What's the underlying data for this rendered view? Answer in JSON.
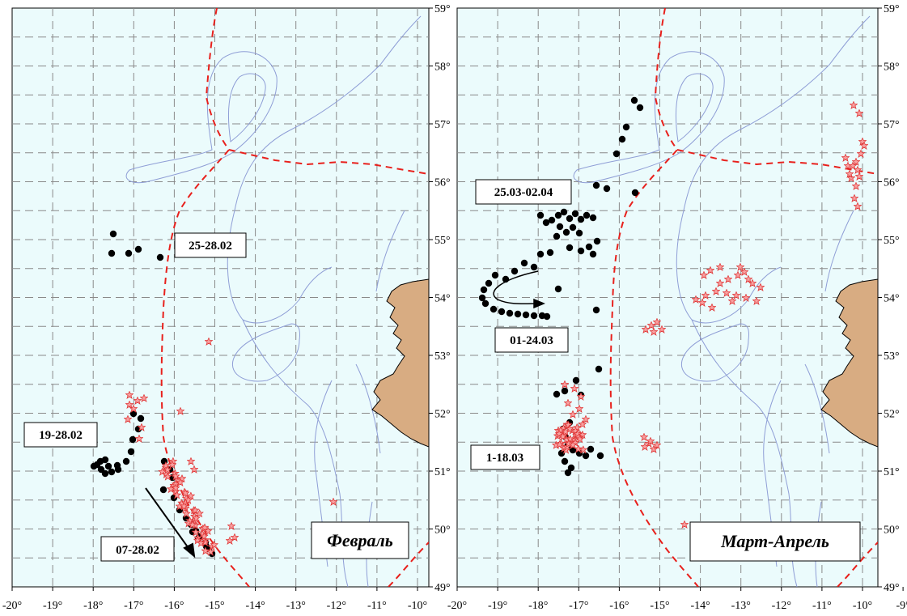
{
  "panels": [
    {
      "id": "feb",
      "title": "Февраль",
      "x_ticks": [
        "-20°",
        "-19°",
        "-18°",
        "-17°",
        "-16°",
        "-15°",
        "-14°",
        "-13°",
        "-12°",
        "-11°",
        "-10°"
      ],
      "y_ticks": [
        "49°",
        "50°",
        "51°",
        "52°",
        "53°",
        "54°",
        "55°",
        "56°",
        "57°",
        "58°",
        "59°"
      ],
      "labels": [
        "25-28.02",
        "19-28.02",
        "07-28.02"
      ]
    },
    {
      "id": "mar",
      "title": "Март-Апрель",
      "x_ticks": [
        "-20°",
        "-19°",
        "-18°",
        "-17°",
        "-16°",
        "-15°",
        "-14°",
        "-13°",
        "-12°",
        "-11°",
        "-10°",
        "-9°"
      ],
      "y_ticks": [
        "49°",
        "50°",
        "51°",
        "52°",
        "53°",
        "54°",
        "55°",
        "56°",
        "57°",
        "58°",
        "59°"
      ],
      "labels": [
        "25.03-02.04",
        "01-24.03",
        "1-18.03"
      ]
    }
  ],
  "map_extent": {
    "lon": [
      -20,
      -9
    ],
    "lat": [
      49,
      59
    ]
  },
  "colors": {
    "sea": "#ebfbfc",
    "grid": "#8a8a8a",
    "land": "#d8ac82",
    "isobath": "#8f9ed6",
    "eez_boundary": "#e8201c",
    "station_dot": "#000000",
    "star": "#f07070"
  },
  "legend_symbols": {
    "black_dot": "circle-marker",
    "red_star": "star-marker"
  }
}
